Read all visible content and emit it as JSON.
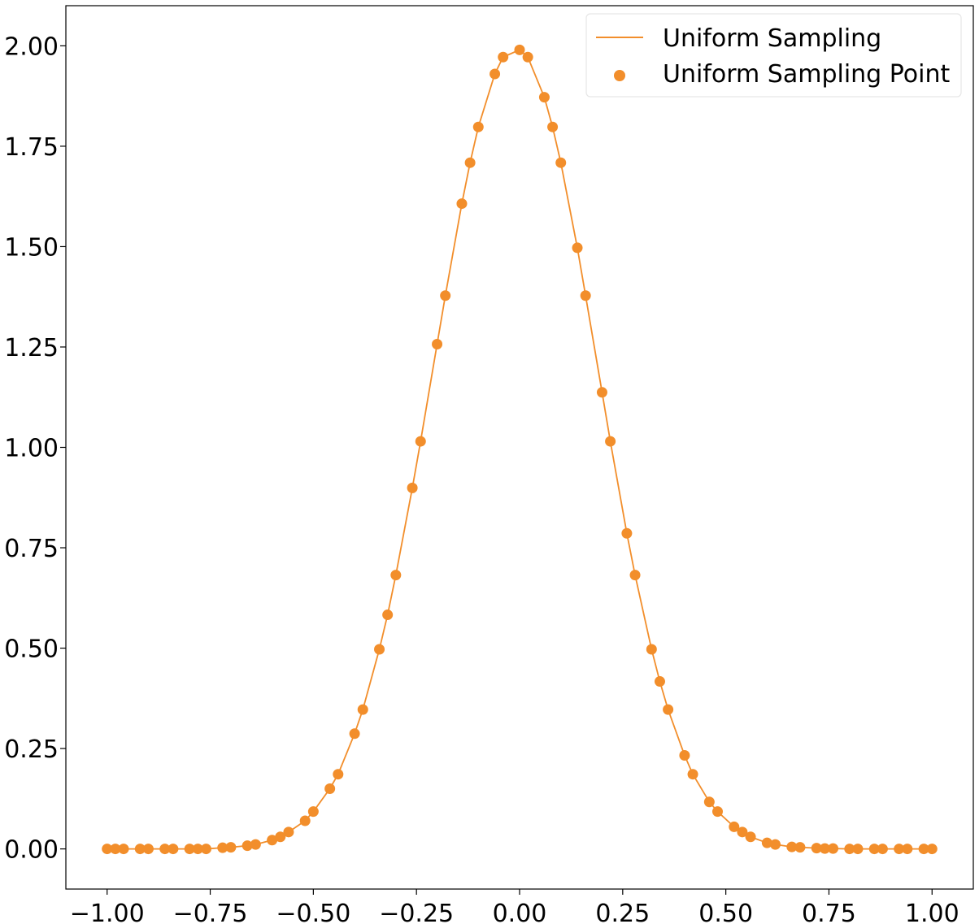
{
  "chart_data": {
    "type": "scatter",
    "title": "",
    "xlabel": "",
    "ylabel": "",
    "xlim": [
      -1.1,
      1.1
    ],
    "ylim": [
      -0.1,
      2.1
    ],
    "grid": false,
    "legend_position": "top-right",
    "x_ticks": [
      -1.0,
      -0.75,
      -0.5,
      -0.25,
      0.0,
      0.25,
      0.5,
      0.75,
      1.0
    ],
    "x_tick_labels": [
      "−1.00",
      "−0.75",
      "−0.50",
      "−0.25",
      "0.00",
      "0.25",
      "0.50",
      "0.75",
      "1.00"
    ],
    "y_ticks": [
      0.0,
      0.25,
      0.5,
      0.75,
      1.0,
      1.25,
      1.5,
      1.75,
      2.0
    ],
    "y_tick_labels": [
      "0.00",
      "0.25",
      "0.50",
      "0.75",
      "1.00",
      "1.25",
      "1.50",
      "1.75",
      "2.00"
    ],
    "series": [
      {
        "name": "Uniform Sampling",
        "kind": "line",
        "color": "#f28e2b",
        "x": [
          -1.0,
          -0.98,
          -0.96,
          -0.92,
          -0.9,
          -0.86,
          -0.84,
          -0.8,
          -0.78,
          -0.76,
          -0.72,
          -0.7,
          -0.66,
          -0.64,
          -0.6,
          -0.58,
          -0.56,
          -0.52,
          -0.5,
          -0.46,
          -0.44,
          -0.4,
          -0.38,
          -0.34,
          -0.32,
          -0.3,
          -0.26,
          -0.24,
          -0.2,
          -0.18,
          -0.14,
          -0.12,
          -0.1,
          -0.06,
          -0.04,
          0.0,
          0.02,
          0.06,
          0.08,
          0.1,
          0.14,
          0.16,
          0.2,
          0.22,
          0.26,
          0.28,
          0.32,
          0.34,
          0.36,
          0.4,
          0.42,
          0.46,
          0.48,
          0.52,
          0.54,
          0.56,
          0.6,
          0.62,
          0.66,
          0.68,
          0.72,
          0.74,
          0.76,
          0.8,
          0.82,
          0.86,
          0.88,
          0.92,
          0.94,
          0.98,
          1.0
        ],
        "y": [
          0.0,
          0.0,
          0.0,
          0.0,
          0.0,
          0.0,
          0.0,
          0.0,
          0.0,
          0.0,
          0.003,
          0.004,
          0.008,
          0.011,
          0.022,
          0.03,
          0.042,
          0.07,
          0.093,
          0.15,
          0.186,
          0.287,
          0.347,
          0.497,
          0.583,
          0.682,
          0.899,
          1.015,
          1.257,
          1.378,
          1.607,
          1.709,
          1.798,
          1.93,
          1.972,
          1.99,
          1.972,
          1.872,
          1.798,
          1.709,
          1.497,
          1.378,
          1.137,
          1.015,
          0.786,
          0.682,
          0.497,
          0.417,
          0.347,
          0.233,
          0.186,
          0.117,
          0.093,
          0.055,
          0.042,
          0.03,
          0.015,
          0.011,
          0.005,
          0.004,
          0.002,
          0.001,
          0.001,
          0.0,
          0.0,
          0.0,
          0.0,
          0.0,
          0.0,
          0.0,
          0.0
        ]
      },
      {
        "name": "Uniform Sampling Point",
        "kind": "scatter",
        "color": "#f28e2b",
        "x": [
          -1.0,
          -0.98,
          -0.96,
          -0.92,
          -0.9,
          -0.86,
          -0.84,
          -0.8,
          -0.78,
          -0.76,
          -0.72,
          -0.7,
          -0.66,
          -0.64,
          -0.6,
          -0.58,
          -0.56,
          -0.52,
          -0.5,
          -0.46,
          -0.44,
          -0.4,
          -0.38,
          -0.34,
          -0.32,
          -0.3,
          -0.26,
          -0.24,
          -0.2,
          -0.18,
          -0.14,
          -0.12,
          -0.1,
          -0.06,
          -0.04,
          0.0,
          0.02,
          0.06,
          0.08,
          0.1,
          0.14,
          0.16,
          0.2,
          0.22,
          0.26,
          0.28,
          0.32,
          0.34,
          0.36,
          0.4,
          0.42,
          0.46,
          0.48,
          0.52,
          0.54,
          0.56,
          0.6,
          0.62,
          0.66,
          0.68,
          0.72,
          0.74,
          0.76,
          0.8,
          0.82,
          0.86,
          0.88,
          0.92,
          0.94,
          0.98,
          1.0
        ],
        "y": [
          0.0,
          0.0,
          0.0,
          0.0,
          0.0,
          0.0,
          0.0,
          0.0,
          0.0,
          0.0,
          0.003,
          0.004,
          0.008,
          0.011,
          0.022,
          0.03,
          0.042,
          0.07,
          0.093,
          0.15,
          0.186,
          0.287,
          0.347,
          0.497,
          0.583,
          0.682,
          0.899,
          1.015,
          1.257,
          1.378,
          1.607,
          1.709,
          1.798,
          1.93,
          1.972,
          1.99,
          1.972,
          1.872,
          1.798,
          1.709,
          1.497,
          1.378,
          1.137,
          1.015,
          0.786,
          0.682,
          0.497,
          0.417,
          0.347,
          0.233,
          0.186,
          0.117,
          0.093,
          0.055,
          0.042,
          0.03,
          0.015,
          0.011,
          0.005,
          0.004,
          0.002,
          0.001,
          0.001,
          0.0,
          0.0,
          0.0,
          0.0,
          0.0,
          0.0,
          0.0,
          0.0
        ]
      }
    ]
  }
}
